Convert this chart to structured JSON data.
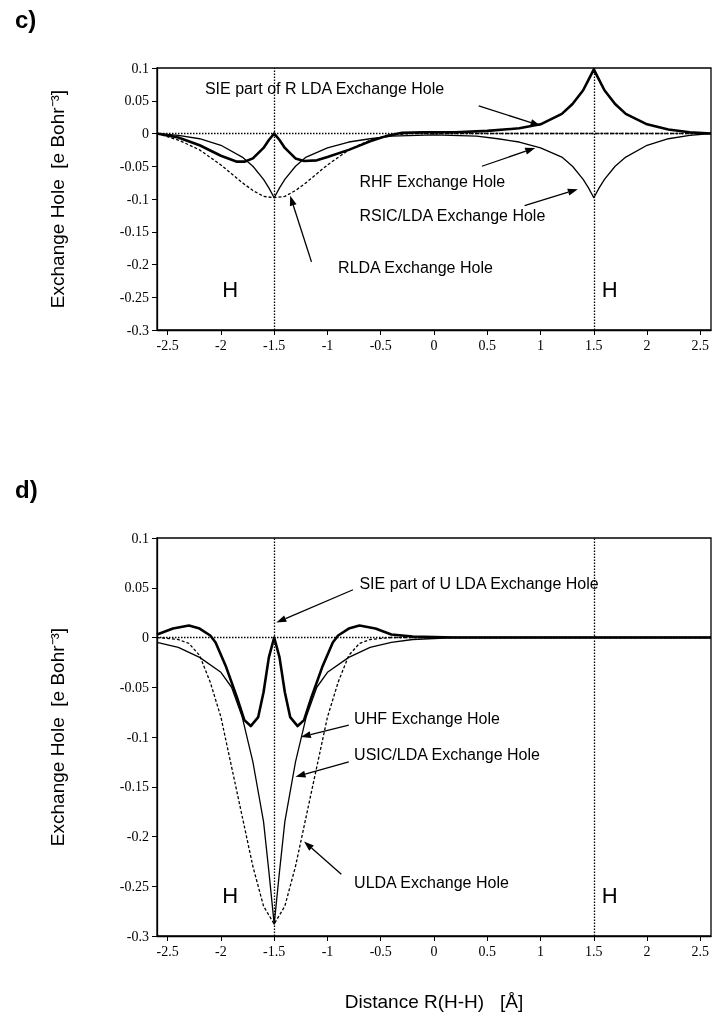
{
  "chart_data": [
    {
      "type": "line",
      "title": "c)",
      "ylabel": "Exchange Hole  [e Bohr⁻³]",
      "xlim": [
        -2.6,
        2.6
      ],
      "xticks": [
        -2.5,
        -2,
        -1.5,
        -1,
        -0.5,
        0,
        0.5,
        1,
        1.5,
        2,
        2.5
      ],
      "ylim": [
        -0.3,
        0.1
      ],
      "yticks": [
        -0.3,
        -0.25,
        -0.2,
        -0.15,
        -0.1,
        -0.05,
        0,
        0.05,
        0.1
      ],
      "grid": false,
      "marker": "none",
      "series": [
        {
          "color": "#000000",
          "line_style": "solid",
          "x": [
            -2.6,
            -2.4,
            -2.2,
            -2.0,
            -1.85,
            -1.78,
            -1.7,
            -1.6,
            -1.55,
            -1.5,
            -1.45,
            -1.4,
            -1.3,
            -1.22,
            -1.1,
            -1.0,
            -0.8,
            -0.6,
            -0.45,
            -0.3,
            -0.1,
            0.2,
            0.5,
            0.8,
            1.0,
            1.2,
            1.3,
            1.4,
            1.45,
            1.5,
            1.55,
            1.6,
            1.7,
            1.8,
            2.0,
            2.2,
            2.4,
            2.6
          ],
          "values": [
            0,
            -0.006,
            -0.018,
            -0.034,
            -0.043,
            -0.043,
            -0.038,
            -0.022,
            -0.01,
            0,
            -0.01,
            -0.022,
            -0.038,
            -0.042,
            -0.041,
            -0.036,
            -0.025,
            -0.012,
            -0.004,
            0.001,
            0.002,
            0.002,
            0.004,
            0.008,
            0.014,
            0.03,
            0.045,
            0.066,
            0.082,
            0.098,
            0.082,
            0.066,
            0.045,
            0.03,
            0.014,
            0.006,
            0.002,
            0
          ]
        },
        {
          "color": "#000000",
          "line_style": "solid",
          "x": [
            -2.6,
            -2.4,
            -2.2,
            -2.0,
            -1.8,
            -1.7,
            -1.6,
            -1.55,
            -1.5,
            -1.45,
            -1.4,
            -1.3,
            -1.2,
            -1.0,
            -0.8,
            -0.6,
            -0.4,
            0,
            0.4,
            0.6,
            0.8,
            1.0,
            1.2,
            1.3,
            1.4,
            1.45,
            1.5,
            1.55,
            1.6,
            1.7,
            1.8,
            2.0,
            2.2,
            2.4,
            2.6
          ],
          "values": [
            0,
            -0.003,
            -0.008,
            -0.018,
            -0.036,
            -0.05,
            -0.07,
            -0.083,
            -0.098,
            -0.083,
            -0.07,
            -0.05,
            -0.036,
            -0.022,
            -0.013,
            -0.008,
            -0.004,
            -0.002,
            -0.004,
            -0.008,
            -0.013,
            -0.022,
            -0.036,
            -0.05,
            -0.07,
            -0.083,
            -0.098,
            -0.083,
            -0.07,
            -0.05,
            -0.036,
            -0.018,
            -0.008,
            -0.003,
            0
          ]
        },
        {
          "color": "#000000",
          "line_style": "dashed",
          "x": [
            -2.6,
            -2.4,
            -2.2,
            -2.0,
            -1.8,
            -1.7,
            -1.6,
            -1.5,
            -1.4,
            -1.3,
            -1.2,
            -1.0,
            -0.8,
            -0.6,
            -0.4,
            -0.2,
            2.6
          ],
          "values": [
            0,
            -0.01,
            -0.025,
            -0.048,
            -0.075,
            -0.087,
            -0.096,
            -0.098,
            -0.096,
            -0.087,
            -0.075,
            -0.048,
            -0.025,
            -0.01,
            -0.002,
            0,
            0
          ]
        }
      ],
      "ref_lines": [
        {
          "axis": "x",
          "value": -1.5,
          "label": "H",
          "line_style": "dotted"
        },
        {
          "axis": "x",
          "value": 1.5,
          "label": "H",
          "line_style": "dotted"
        },
        {
          "axis": "y",
          "value": 0,
          "line_style": "dotted"
        }
      ],
      "annotations": [
        "SIE part of R LDA Exchange Hole",
        "RHF Exchange Hole",
        "RSIC/LDA Exchange Hole",
        "RLDA Exchange Hole"
      ]
    },
    {
      "type": "line",
      "title": "d)",
      "ylabel": "Exchange Hole  [e Bohr⁻³]",
      "xlabel": "Distance R(H-H)   [Å]",
      "xlim": [
        -2.6,
        2.6
      ],
      "xticks": [
        -2.5,
        -2,
        -1.5,
        -1,
        -0.5,
        0,
        0.5,
        1,
        1.5,
        2,
        2.5
      ],
      "ylim": [
        -0.3,
        0.1
      ],
      "yticks": [
        -0.3,
        -0.25,
        -0.2,
        -0.15,
        -0.1,
        -0.05,
        0,
        0.05,
        0.1
      ],
      "grid": false,
      "marker": "none",
      "series": [
        {
          "color": "#000000",
          "line_style": "solid",
          "x": [
            -2.6,
            -2.45,
            -2.3,
            -2.2,
            -2.1,
            -2.05,
            -1.95,
            -1.85,
            -1.78,
            -1.72,
            -1.65,
            -1.6,
            -1.55,
            -1.5,
            -1.45,
            -1.4,
            -1.35,
            -1.28,
            -1.22,
            -1.15,
            -1.05,
            -0.95,
            -0.9,
            -0.8,
            -0.7,
            -0.55,
            -0.4,
            -0.2,
            0.2,
            2.6
          ],
          "values": [
            0.003,
            0.009,
            0.012,
            0.009,
            0.002,
            -0.005,
            -0.03,
            -0.06,
            -0.083,
            -0.089,
            -0.08,
            -0.055,
            -0.02,
            0,
            -0.02,
            -0.055,
            -0.08,
            -0.089,
            -0.083,
            -0.06,
            -0.03,
            -0.005,
            0.002,
            0.009,
            0.012,
            0.009,
            0.003,
            0.001,
            0,
            0
          ]
        },
        {
          "color": "#000000",
          "line_style": "solid",
          "x": [
            -2.6,
            -2.4,
            -2.2,
            -2.0,
            -1.9,
            -1.8,
            -1.7,
            -1.6,
            -1.55,
            -1.5,
            -1.45,
            -1.4,
            -1.3,
            -1.2,
            -1.1,
            -1.0,
            -0.8,
            -0.6,
            -0.4,
            -0.2,
            0.2,
            2.6
          ],
          "values": [
            -0.005,
            -0.01,
            -0.02,
            -0.035,
            -0.05,
            -0.08,
            -0.125,
            -0.185,
            -0.235,
            -0.288,
            -0.235,
            -0.185,
            -0.125,
            -0.08,
            -0.05,
            -0.035,
            -0.02,
            -0.01,
            -0.005,
            -0.002,
            0,
            0
          ]
        },
        {
          "color": "#000000",
          "line_style": "dashed",
          "x": [
            -2.6,
            -2.4,
            -2.3,
            -2.2,
            -2.1,
            -2.0,
            -1.9,
            -1.8,
            -1.7,
            -1.6,
            -1.5,
            -1.4,
            -1.3,
            -1.2,
            -1.1,
            -1.0,
            -0.9,
            -0.8,
            -0.7,
            -0.6,
            -0.4,
            2.6
          ],
          "values": [
            0,
            -0.002,
            -0.006,
            -0.018,
            -0.045,
            -0.08,
            -0.13,
            -0.18,
            -0.23,
            -0.27,
            -0.288,
            -0.27,
            -0.23,
            -0.18,
            -0.13,
            -0.08,
            -0.045,
            -0.018,
            -0.006,
            -0.002,
            0,
            0
          ]
        }
      ],
      "ref_lines": [
        {
          "axis": "x",
          "value": -1.5,
          "label": "H",
          "line_style": "dotted"
        },
        {
          "axis": "x",
          "value": 1.5,
          "label": "H",
          "line_style": "dotted"
        },
        {
          "axis": "y",
          "value": 0,
          "line_style": "dotted"
        }
      ],
      "annotations": [
        "SIE part of U LDA Exchange Hole",
        "UHF Exchange Hole",
        "USIC/LDA Exchange Hole",
        "ULDA Exchange Hole"
      ]
    }
  ]
}
